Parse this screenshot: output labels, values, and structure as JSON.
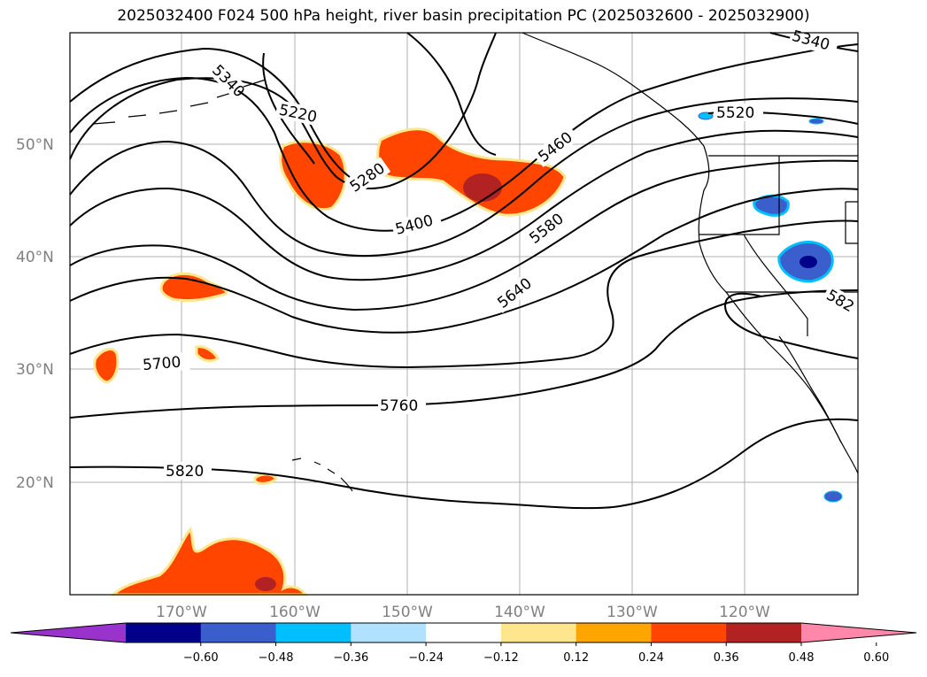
{
  "title": "2025032400 F024 500 hPa height, river basin precipitation PC (2025032600 - 2025032900)",
  "map": {
    "lat_labels": [
      "50°N",
      "40°N",
      "30°N",
      "20°N"
    ],
    "lon_labels": [
      "170°W",
      "160°W",
      "150°W",
      "140°W",
      "130°W",
      "120°W"
    ],
    "gridlines": true,
    "extent": {
      "lon": [
        -180,
        -110
      ],
      "lat": [
        10,
        60
      ]
    },
    "contour_labels": [
      "5340",
      "5220",
      "5280",
      "5400",
      "5460",
      "5520",
      "5580",
      "5640",
      "5700",
      "5760",
      "5820",
      "5340",
      "582"
    ]
  },
  "colorbar": {
    "ticks": [
      "−0.60",
      "−0.48",
      "−0.36",
      "−0.24",
      "−0.12",
      "0.12",
      "0.24",
      "0.36",
      "0.48",
      "0.60"
    ],
    "colors": [
      "#9933cc",
      "#00008b",
      "#3a5fcd",
      "#00bfff",
      "#b0e2ff",
      "#ffffff",
      "#ffe68c",
      "#ffa500",
      "#ff4500",
      "#b22222",
      "#ff88aa"
    ],
    "extend": "both"
  }
}
